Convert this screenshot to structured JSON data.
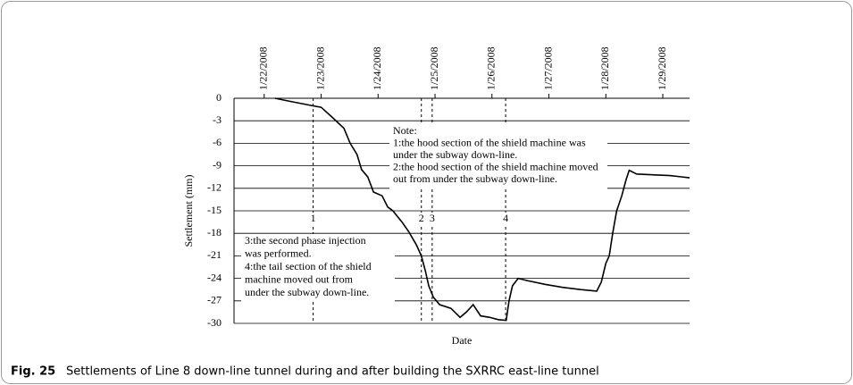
{
  "chart_data": {
    "type": "line",
    "title": "Settlements of Line 8 down-line tunnel during and after building the SXRRC east-line tunnel",
    "figure_label": "Fig. 25",
    "xlabel": "Date",
    "ylabel": "Settlement (mm)",
    "x": [
      22.19,
      22.38,
      22.85,
      23.0,
      23.19,
      23.4,
      23.51,
      23.63,
      23.71,
      23.82,
      23.92,
      24.07,
      24.17,
      24.26,
      24.42,
      24.54,
      24.67,
      24.76,
      24.83,
      24.89,
      24.97,
      25.08,
      25.28,
      25.44,
      25.55,
      25.67,
      25.8,
      25.96,
      26.11,
      26.25,
      26.3,
      26.36,
      26.46,
      26.62,
      26.93,
      27.24,
      27.56,
      27.84,
      27.92,
      28.0,
      28.06,
      28.12,
      28.19,
      28.28,
      28.35,
      28.41,
      28.54,
      28.82,
      29.13,
      29.47
    ],
    "series": [
      {
        "name": "Settlement",
        "color": "#000000",
        "values": [
          0,
          -0.3,
          -1,
          -1.2,
          -2.5,
          -4,
          -6,
          -7.5,
          -9.5,
          -10.5,
          -12.5,
          -13,
          -14.5,
          -15,
          -16.5,
          -17.8,
          -19.5,
          -21,
          -23,
          -25,
          -26.5,
          -27.5,
          -28,
          -29.2,
          -28.5,
          -27.5,
          -29,
          -29.2,
          -29.5,
          -29.6,
          -27,
          -25,
          -24,
          -24.3,
          -24.8,
          -25.2,
          -25.5,
          -25.7,
          -24.5,
          -22,
          -21,
          -18,
          -15,
          -13,
          -11,
          -9.6,
          -10.1,
          -10.2,
          -10.3,
          -10.6
        ]
      }
    ],
    "xlim": [
      21.47,
      29.47
    ],
    "xticks": [
      {
        "value": 22,
        "label": "1/22/2008"
      },
      {
        "value": 23,
        "label": "1/23/2008"
      },
      {
        "value": 24,
        "label": "1/24/2008"
      },
      {
        "value": 25,
        "label": "1/25/2008"
      },
      {
        "value": 26,
        "label": "1/26/2008"
      },
      {
        "value": 27,
        "label": "1/27/2008"
      },
      {
        "value": 28,
        "label": "1/28/2008"
      },
      {
        "value": 29,
        "label": "1/29/2008"
      }
    ],
    "ylim": [
      -30,
      0
    ],
    "yticks": [
      0,
      -3,
      -6,
      -9,
      -12,
      -15,
      -18,
      -21,
      -24,
      -27,
      -30
    ],
    "grid": true,
    "markers": [
      {
        "label": "1",
        "x": 22.86
      },
      {
        "label": "2",
        "x": 24.76
      },
      {
        "label": "3",
        "x": 24.95
      },
      {
        "label": "4",
        "x": 26.24
      }
    ],
    "note_top": [
      "Note:",
      "1:the hood section of the shield machine was",
      "under the subway down-line.",
      "2:the hood section of the shield machine moved",
      "out from under the subway down-line."
    ],
    "note_left": [
      "3:the second phase injection",
      "was performed.",
      "4:the tail section of the shield",
      "machine moved out from",
      "under the subway down-line."
    ]
  }
}
